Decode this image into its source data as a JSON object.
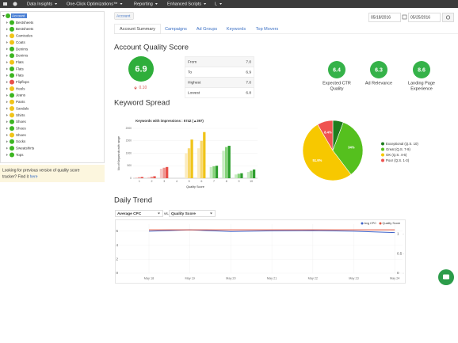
{
  "nav": {
    "items": [
      "Data Insights",
      "One-Click Optimizations™",
      "Reporting",
      "Enhanced Scripts",
      "L"
    ]
  },
  "sidebar": {
    "root": "Account",
    "nodes": [
      {
        "label": "Bestsheets",
        "color": "#3cb521"
      },
      {
        "label": "Bestsheets",
        "color": "#3cb521"
      },
      {
        "label": "Camisoles",
        "color": "#f0c419"
      },
      {
        "label": "Coats",
        "color": "#f0c419"
      },
      {
        "label": "Denims",
        "color": "#3cb521"
      },
      {
        "label": "Denims",
        "color": "#3cb521"
      },
      {
        "label": "Flats",
        "color": "#f0c419"
      },
      {
        "label": "Flats",
        "color": "#3cb521"
      },
      {
        "label": "Flats",
        "color": "#3cb521"
      },
      {
        "label": "Flipflops",
        "color": "#e8504a"
      },
      {
        "label": "Heels",
        "color": "#f0c419"
      },
      {
        "label": "Jeans",
        "color": "#3cb521"
      },
      {
        "label": "Pants",
        "color": "#f0c419"
      },
      {
        "label": "Sandals",
        "color": "#f0c419"
      },
      {
        "label": "Shirts",
        "color": "#f0c419"
      },
      {
        "label": "Shoes",
        "color": "#3cb521"
      },
      {
        "label": "Shoes",
        "color": "#3cb521"
      },
      {
        "label": "Shoes",
        "color": "#f0c419"
      },
      {
        "label": "Socks",
        "color": "#3cb521"
      },
      {
        "label": "Sweatshirts",
        "color": "#3cb521"
      },
      {
        "label": "Tops",
        "color": "#3cb521"
      }
    ],
    "note": [
      "Looking for previous version of quality score",
      "tracker? Find it"
    ],
    "note_link": "here"
  },
  "breadcrumb": "Account",
  "date_from": "05/18/2016",
  "date_to": "05/25/2016",
  "tabs": [
    "Account Summary",
    "Campaigns",
    "Ad Groups",
    "Keywords",
    "Top Movers"
  ],
  "quality": {
    "heading": "Account Quality Score",
    "score": 6.9,
    "change": "0.10",
    "rows": [
      {
        "label": "From",
        "value": "7.0"
      },
      {
        "label": "To",
        "value": "6.9"
      },
      {
        "label": "Highest",
        "value": "7.0"
      },
      {
        "label": "Lowest",
        "value": "6.8"
      }
    ],
    "metrics": [
      {
        "value": 6.4,
        "label": [
          "Expected CTR",
          "Quality"
        ]
      },
      {
        "value": 6.3,
        "label": [
          "Ad Relevance"
        ]
      },
      {
        "value": 8.6,
        "label": [
          "Landing Page",
          "Experience"
        ]
      }
    ]
  },
  "spread_heading": "Keyword Spread",
  "trend": {
    "heading": "Daily Trend",
    "metric1": "Average CPC",
    "vs": "vs.",
    "metric2": "Quality Score"
  },
  "chart_data": [
    {
      "type": "bar",
      "title": "Keywords with impressions : 5742 (▲397)",
      "x_label": "Quality Score",
      "y_label": "No of Keywords with range",
      "categories": [
        "1",
        "2",
        "3",
        "4",
        "5",
        "6",
        "7",
        "8",
        "9",
        "10"
      ],
      "series": [
        {
          "values": [
            30,
            40,
            380,
            0,
            1000,
            1200,
            450,
            1100,
            150,
            250
          ],
          "colors": [
            "#f6c7c4",
            "#f6c7c4",
            "#f6c7c4",
            "#fbecc0",
            "#fbecc0",
            "#fbecc0",
            "#c6ebc0",
            "#c6ebc0",
            "#c6ebc0",
            "#c6ebc0"
          ]
        },
        {
          "values": [
            40,
            60,
            420,
            0,
            1200,
            1500,
            480,
            1250,
            180,
            300
          ],
          "colors": [
            "#ee948f",
            "#ee948f",
            "#ee948f",
            "#f8d86d",
            "#f8d86d",
            "#f8d86d",
            "#86d37a",
            "#86d37a",
            "#86d37a",
            "#86d37a"
          ]
        },
        {
          "values": [
            50,
            80,
            450,
            0,
            1550,
            1850,
            500,
            1300,
            200,
            350
          ],
          "colors": [
            "#e8504a",
            "#e8504a",
            "#e8504a",
            "#f0c419",
            "#f0c419",
            "#f0c419",
            "#2e9e2e",
            "#2e9e2e",
            "#2e9e2e",
            "#2e9e2e"
          ]
        }
      ],
      "ylim": [
        0,
        2000
      ],
      "yticks": [
        0,
        500,
        1000,
        1500,
        2000
      ]
    },
    {
      "type": "pie",
      "categories": [
        "Exceptional (Q.S. 10)",
        "Great (Q.S. 7-9)",
        "OK (Q.S. 4-6)",
        "Poor (Q.S. 1-3)"
      ],
      "values": [
        5.7,
        34,
        51.9,
        8.4
      ],
      "value_labels": [
        null,
        "34%",
        "51.9%",
        "8.4%"
      ],
      "colors": [
        "#1e7d1e",
        "#55c01e",
        "#f7c800",
        "#ef5350"
      ]
    },
    {
      "type": "line",
      "categories": [
        "May 18",
        "May 19",
        "May 20",
        "May 21",
        "May 22",
        "May 23",
        "May 24"
      ],
      "series": [
        {
          "name": "Avg CPC",
          "color": "#3d62c9",
          "values": [
            6.0,
            6.2,
            5.95,
            6.05,
            6.1,
            6.0,
            5.8
          ]
        },
        {
          "name": "Quality Score",
          "color": "#e0533c",
          "values": [
            6.2,
            6.2,
            6.2,
            6.2,
            6.2,
            6.2,
            6.2
          ]
        }
      ],
      "ylim": [
        0,
        7
      ],
      "yticks": [
        0,
        2,
        4,
        6
      ],
      "y2lim": [
        0,
        1.25
      ],
      "y2ticks": [
        0,
        0.5,
        1
      ]
    }
  ]
}
